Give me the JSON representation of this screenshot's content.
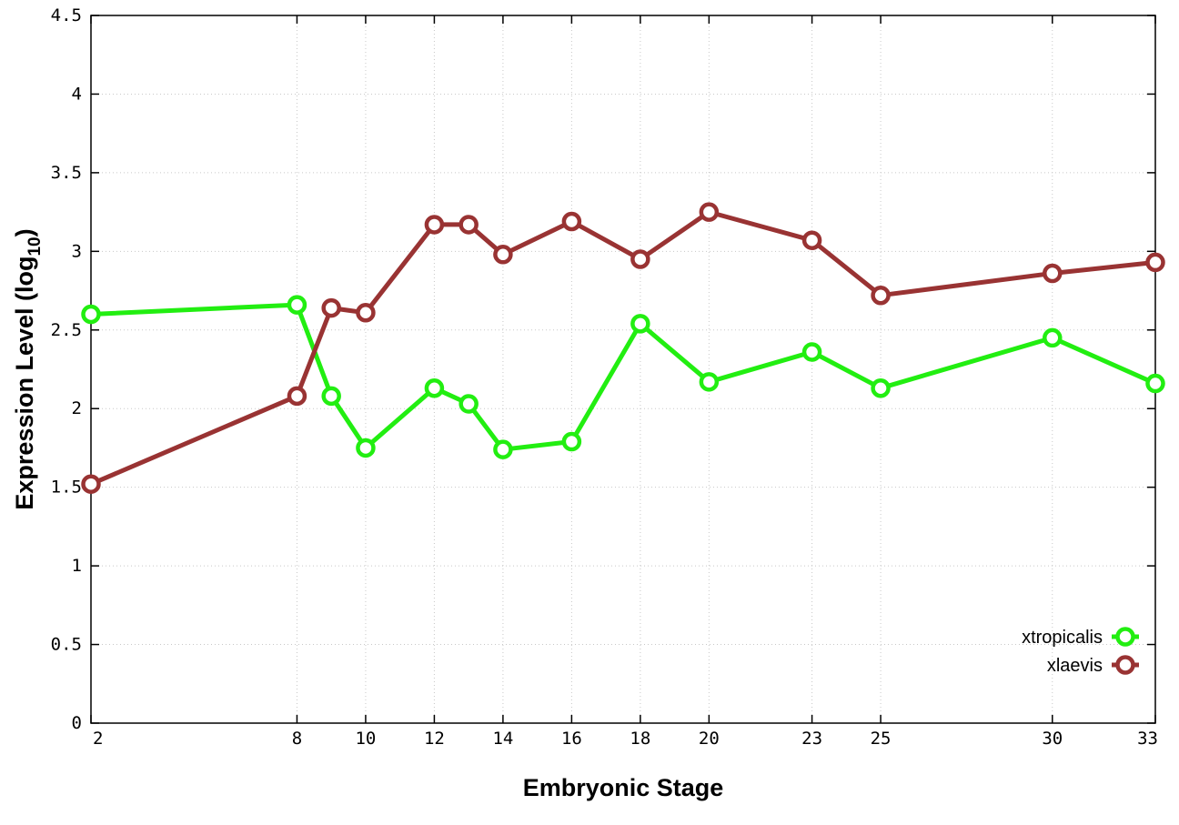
{
  "chart_data": {
    "type": "line",
    "xlabel": "Embryonic Stage",
    "ylabel_main": "Expression Level (log",
    "ylabel_sub": "10",
    "ylabel_close": ")",
    "x_ticks": [
      2,
      8,
      10,
      12,
      14,
      16,
      18,
      20,
      23,
      25,
      30,
      33
    ],
    "y_ticks": [
      "0",
      "0.5",
      "1",
      "1.5",
      "2",
      "2.5",
      "3",
      "3.5",
      "4",
      "4.5"
    ],
    "ylim": [
      0,
      4.5
    ],
    "grid": true,
    "legend_position": "bottom-right",
    "series": [
      {
        "name": "xtropicalis",
        "color": "#22ee11",
        "points": [
          [
            2,
            2.6
          ],
          [
            8,
            2.66
          ],
          [
            9,
            2.08
          ],
          [
            10,
            1.75
          ],
          [
            12,
            2.13
          ],
          [
            13,
            2.03
          ],
          [
            14,
            1.74
          ],
          [
            16,
            1.79
          ],
          [
            18,
            2.54
          ],
          [
            20,
            2.17
          ],
          [
            23,
            2.36
          ],
          [
            25,
            2.13
          ],
          [
            30,
            2.45
          ],
          [
            33,
            2.16
          ]
        ]
      },
      {
        "name": "xlaevis",
        "color": "#993333",
        "points": [
          [
            2,
            1.52
          ],
          [
            8,
            2.08
          ],
          [
            9,
            2.64
          ],
          [
            10,
            2.61
          ],
          [
            12,
            3.17
          ],
          [
            13,
            3.17
          ],
          [
            14,
            2.98
          ],
          [
            16,
            3.19
          ],
          [
            18,
            2.95
          ],
          [
            20,
            3.25
          ],
          [
            23,
            3.07
          ],
          [
            25,
            2.72
          ],
          [
            30,
            2.86
          ],
          [
            33,
            2.93
          ]
        ]
      }
    ]
  }
}
